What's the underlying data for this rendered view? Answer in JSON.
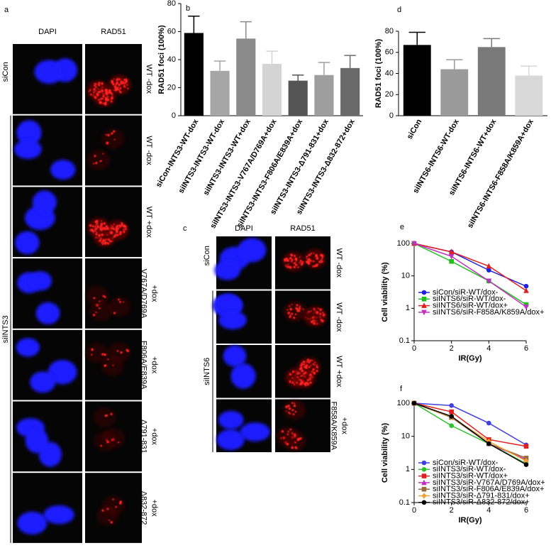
{
  "panel_labels": [
    "a",
    "b",
    "c",
    "d",
    "e",
    "f"
  ],
  "image_panels": [
    {
      "columns": [
        "DAPI",
        "RAD51"
      ],
      "groups": [
        {
          "name": "siCon",
          "rows": [
            0,
            0
          ]
        },
        {
          "name": "siINTS3",
          "rows": [
            1,
            6
          ]
        }
      ],
      "rows": [
        [
          "WT -dox"
        ],
        [
          "WT -dox"
        ],
        [
          "WT +dox"
        ],
        [
          "V767A/D769A",
          "+dox"
        ],
        [
          "F806A/E839A",
          "+dox"
        ],
        [
          "Δ791-831",
          "+dox"
        ],
        [
          "Δ832-872",
          "+dox"
        ]
      ]
    },
    {
      "columns": [
        "DAPI",
        "RAD51"
      ],
      "groups": [
        {
          "name": "siCon",
          "rows": [
            0,
            0
          ]
        },
        {
          "name": "siINTS6",
          "rows": [
            1,
            3
          ]
        }
      ],
      "rows": [
        [
          "WT -dox"
        ],
        [
          "WT -dox"
        ],
        [
          "WT +dox"
        ],
        [
          "F858A/K859A",
          "+dox"
        ]
      ]
    }
  ],
  "chart_data": [
    {
      "type": "bar",
      "y_label": "RAD51 foci (100%)",
      "categories": [
        "siCon-INTS3-WT-dox",
        "siINTS3-INTS3-WT-dox",
        "siINTS3-INTS3-WT+dox",
        "siINTS3-INTS3-V767A/D769A+dox",
        "siINTS3-INTS3-F806A/E839A+dox",
        "siINTS3-INTS3-Δ791-831+dox",
        "siINTS3-INTS3-Δ832-872+dox"
      ],
      "values": [
        59,
        32,
        55,
        37,
        25,
        29,
        34
      ],
      "errors": [
        12,
        7,
        12,
        9,
        4,
        9,
        9
      ],
      "colors": [
        "#000000",
        "#a6a6a6",
        "#8a8a8a",
        "#d4d4d4",
        "#555555",
        "#9e9e9e",
        "#6a6a6a"
      ],
      "ylim": [
        0,
        80
      ],
      "yticks": [
        0,
        20,
        40,
        60,
        80
      ]
    },
    {
      "type": "bar",
      "y_label": "RAD51 foci (100%)",
      "categories": [
        "siCon",
        "siINTS6-INTS6-WT-dox",
        "siINTS6-INTS6-WT+dox",
        "siINTS6-INTS6-F858A/K859A+dox"
      ],
      "values": [
        67,
        44,
        65,
        38
      ],
      "errors": [
        12,
        9,
        8,
        9
      ],
      "colors": [
        "#000000",
        "#9a9a9a",
        "#7a7a7a",
        "#d8d8d8"
      ],
      "ylim": [
        0,
        80
      ],
      "yticks": [
        0,
        20,
        40,
        60,
        80
      ]
    },
    {
      "type": "line",
      "log_y": true,
      "x_label": "IR(Gy)",
      "y_label": "Cell viability (%)",
      "legend": "lower left",
      "x": [
        0,
        2,
        4,
        6
      ],
      "xlim": [
        0,
        6
      ],
      "xticks": [
        0,
        2,
        4,
        6
      ],
      "ylim": [
        0.1,
        100
      ],
      "yticks": [
        100,
        10,
        1,
        0.1
      ],
      "series": [
        {
          "name": "siCon/siR-WT/dox-",
          "color": "#1f1fe0",
          "marker": "circle",
          "values": [
            100,
            55,
            15,
            4.8
          ]
        },
        {
          "name": "siINTS6/siR-WT/dox-",
          "color": "#1fc01f",
          "marker": "square",
          "values": [
            100,
            28,
            7,
            1.3
          ]
        },
        {
          "name": "siINTS6/siR-WT/dox+",
          "color": "#e01f1f",
          "marker": "triangle",
          "values": [
            100,
            55,
            20,
            3.5
          ]
        },
        {
          "name": "siINTS6/siR-F858A/K859A/dox+",
          "color": "#c030c0",
          "marker": "triangle-down",
          "values": [
            100,
            40,
            7,
            1.1
          ]
        }
      ]
    },
    {
      "type": "line",
      "log_y": true,
      "x_label": "IR(Gy)",
      "y_label": "Cell viability (%)",
      "legend": "lower left",
      "x": [
        0,
        2,
        4,
        6
      ],
      "xlim": [
        0,
        6
      ],
      "xticks": [
        0,
        2,
        4,
        6
      ],
      "ylim": [
        0.1,
        100
      ],
      "yticks": [
        100,
        10,
        1,
        0.1
      ],
      "series": [
        {
          "name": "siCon/siR-WT/dox-",
          "color": "#4040e0",
          "marker": "circle",
          "values": [
            100,
            85,
            25,
            5.5
          ]
        },
        {
          "name": "siINTS3/siR-WT/dox-",
          "color": "#30c030",
          "marker": "circle",
          "values": [
            100,
            21,
            6,
            1.5
          ]
        },
        {
          "name": "siINTS3/siR-WT/dox+",
          "color": "#e02020",
          "marker": "square",
          "values": [
            100,
            55,
            8,
            5
          ]
        },
        {
          "name": "siINTS3/siR-V767A/D769A/dox+",
          "color": "#c030c0",
          "marker": "triangle",
          "values": [
            100,
            38,
            6,
            2
          ]
        },
        {
          "name": "siINTS3/siR-F806A/E839A/dox+",
          "color": "#9a6a3a",
          "marker": "square",
          "values": [
            100,
            37,
            6,
            2.2
          ]
        },
        {
          "name": "siINTS3/siR-Δ791-831/dox+",
          "color": "#f0a030",
          "marker": "diamond",
          "values": [
            100,
            38,
            7,
            1.8
          ]
        },
        {
          "name": "siINTS3/siR-Δ832-872/dox+",
          "color": "#000000",
          "marker": "circle",
          "values": [
            100,
            40,
            6,
            1.4
          ]
        }
      ]
    }
  ]
}
